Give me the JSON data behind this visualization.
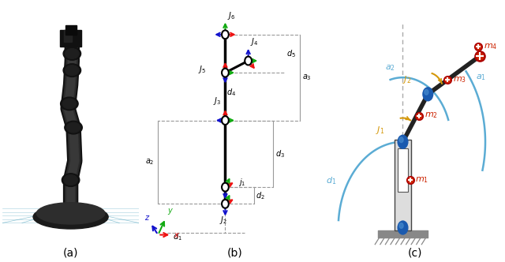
{
  "fig_width": 6.4,
  "fig_height": 3.32,
  "bg_color": "#ffffff",
  "panel_a_bg": "#5bbdd4",
  "panel_b_label": "(b)",
  "panel_c_label": "(c)",
  "arc_color": "#5bacd4",
  "angle_color": "#d4980a",
  "link_color": "#222222",
  "joint_color": "#1a5aaf",
  "mass_color": "#cc2200",
  "dashed_color": "#999999",
  "ground_color": "#888888",
  "arrow_red": "#ee1111",
  "arrow_green": "#11aa11",
  "arrow_blue": "#1111cc"
}
